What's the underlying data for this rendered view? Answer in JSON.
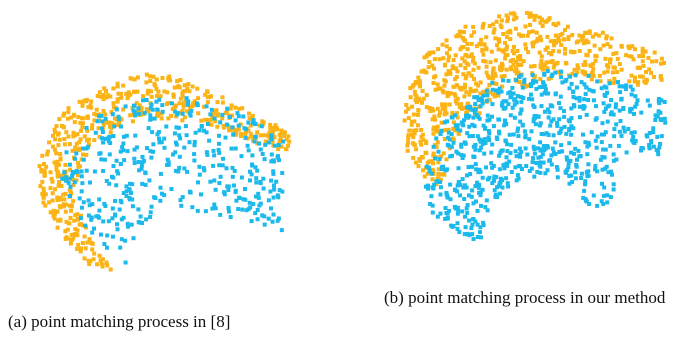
{
  "figures": [
    {
      "caption": "(a) point matching process in [8]"
    },
    {
      "caption": "(b) point matching process in our method"
    }
  ]
}
